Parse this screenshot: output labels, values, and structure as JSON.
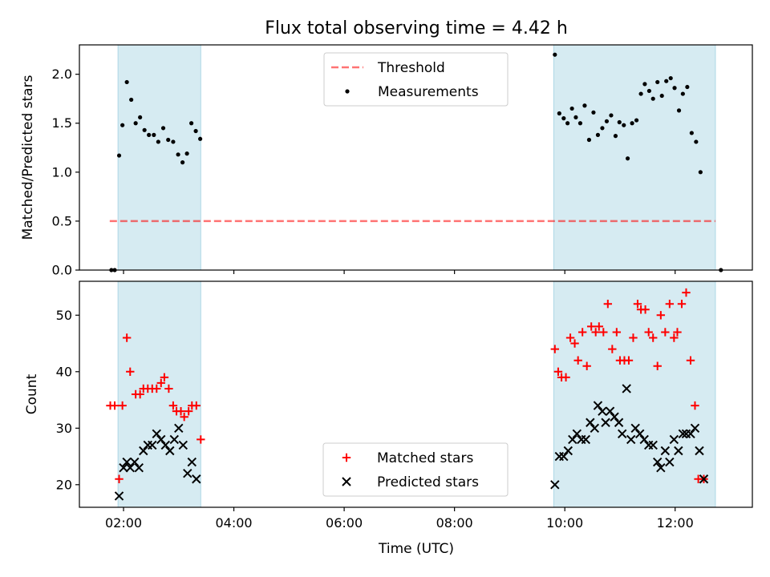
{
  "figure": {
    "title": "Flux total observing time = 4.42 h",
    "xlabel": "Time (UTC)"
  },
  "colors": {
    "band": "#add8e6",
    "threshold": "#ff0000",
    "measurement": "#000000",
    "matched": "#ff0000",
    "predicted": "#000000"
  },
  "chart_data": [
    {
      "type": "scatter",
      "title": "Flux total observing time = 4.42 h",
      "xlabel": "",
      "ylabel": "Matched/Predicted stars",
      "xlim": [
        1.2,
        13.4
      ],
      "ylim": [
        0,
        2.3
      ],
      "xticks": [
        2,
        4,
        6,
        8,
        10,
        12
      ],
      "xtick_labels": [
        "02:00",
        "04:00",
        "06:00",
        "08:00",
        "10:00",
        "12:00"
      ],
      "yticks": [
        0,
        0.5,
        1.0,
        1.5,
        2.0
      ],
      "ytick_labels": [
        "0.0",
        "0.5",
        "1.0",
        "1.5",
        "2.0"
      ],
      "legend_position": "top-center",
      "shaded_intervals": [
        [
          1.9,
          3.4
        ],
        [
          9.8,
          12.73
        ]
      ],
      "threshold": {
        "name": "Threshold",
        "style": "dashed",
        "y": 0.5,
        "x": [
          1.75,
          12.73
        ]
      },
      "series": [
        {
          "name": "Measurements",
          "marker": "dot",
          "points": [
            [
              1.78,
              0
            ],
            [
              1.84,
              0
            ],
            [
              1.92,
              1.17
            ],
            [
              1.98,
              1.48
            ],
            [
              2.06,
              1.92
            ],
            [
              2.14,
              1.74
            ],
            [
              2.22,
              1.5
            ],
            [
              2.3,
              1.56
            ],
            [
              2.38,
              1.43
            ],
            [
              2.46,
              1.38
            ],
            [
              2.55,
              1.38
            ],
            [
              2.63,
              1.31
            ],
            [
              2.72,
              1.45
            ],
            [
              2.81,
              1.33
            ],
            [
              2.9,
              1.31
            ],
            [
              2.99,
              1.18
            ],
            [
              3.07,
              1.1
            ],
            [
              3.15,
              1.19
            ],
            [
              3.23,
              1.5
            ],
            [
              3.31,
              1.42
            ],
            [
              3.39,
              1.34
            ],
            [
              9.82,
              2.2
            ],
            [
              9.9,
              1.6
            ],
            [
              9.98,
              1.55
            ],
            [
              10.05,
              1.5
            ],
            [
              10.13,
              1.65
            ],
            [
              10.2,
              1.56
            ],
            [
              10.28,
              1.5
            ],
            [
              10.36,
              1.68
            ],
            [
              10.44,
              1.33
            ],
            [
              10.52,
              1.61
            ],
            [
              10.6,
              1.38
            ],
            [
              10.68,
              1.45
            ],
            [
              10.76,
              1.52
            ],
            [
              10.84,
              1.58
            ],
            [
              10.92,
              1.37
            ],
            [
              10.99,
              1.51
            ],
            [
              11.07,
              1.48
            ],
            [
              11.14,
              1.14
            ],
            [
              11.22,
              1.5
            ],
            [
              11.3,
              1.53
            ],
            [
              11.38,
              1.8
            ],
            [
              11.45,
              1.9
            ],
            [
              11.53,
              1.83
            ],
            [
              11.6,
              1.75
            ],
            [
              11.68,
              1.92
            ],
            [
              11.76,
              1.78
            ],
            [
              11.84,
              1.93
            ],
            [
              11.92,
              1.96
            ],
            [
              11.99,
              1.86
            ],
            [
              12.07,
              1.63
            ],
            [
              12.14,
              1.8
            ],
            [
              12.22,
              1.87
            ],
            [
              12.3,
              1.4
            ],
            [
              12.38,
              1.31
            ],
            [
              12.46,
              1.0
            ],
            [
              12.83,
              0
            ]
          ]
        }
      ]
    },
    {
      "type": "scatter",
      "title": "",
      "xlabel": "Time (UTC)",
      "ylabel": "Count",
      "xlim": [
        1.2,
        13.4
      ],
      "ylim": [
        16,
        56
      ],
      "xticks": [
        2,
        4,
        6,
        8,
        10,
        12
      ],
      "xtick_labels": [
        "02:00",
        "04:00",
        "06:00",
        "08:00",
        "10:00",
        "12:00"
      ],
      "yticks": [
        20,
        30,
        40,
        50
      ],
      "ytick_labels": [
        "20",
        "30",
        "40",
        "50"
      ],
      "legend_position": "bottom-center",
      "shaded_intervals": [
        [
          1.9,
          3.4
        ],
        [
          9.8,
          12.73
        ]
      ],
      "series": [
        {
          "name": "Matched stars",
          "marker": "plus",
          "points": [
            [
              1.76,
              34
            ],
            [
              1.84,
              34
            ],
            [
              1.92,
              21
            ],
            [
              1.98,
              34
            ],
            [
              2.06,
              46
            ],
            [
              2.12,
              40
            ],
            [
              2.22,
              36
            ],
            [
              2.3,
              36
            ],
            [
              2.36,
              37
            ],
            [
              2.44,
              37
            ],
            [
              2.52,
              37
            ],
            [
              2.6,
              37
            ],
            [
              2.68,
              38
            ],
            [
              2.74,
              39
            ],
            [
              2.82,
              37
            ],
            [
              2.9,
              34
            ],
            [
              2.96,
              33
            ],
            [
              3.04,
              33
            ],
            [
              3.1,
              32
            ],
            [
              3.18,
              33
            ],
            [
              3.24,
              34
            ],
            [
              3.32,
              34
            ],
            [
              3.4,
              28
            ],
            [
              9.82,
              44
            ],
            [
              9.88,
              40
            ],
            [
              9.94,
              39
            ],
            [
              10.02,
              39
            ],
            [
              10.1,
              46
            ],
            [
              10.18,
              45
            ],
            [
              10.24,
              42
            ],
            [
              10.32,
              47
            ],
            [
              10.4,
              41
            ],
            [
              10.48,
              48
            ],
            [
              10.56,
              47
            ],
            [
              10.62,
              48
            ],
            [
              10.7,
              47
            ],
            [
              10.78,
              52
            ],
            [
              10.86,
              44
            ],
            [
              10.94,
              47
            ],
            [
              11.0,
              42
            ],
            [
              11.08,
              42
            ],
            [
              11.16,
              42
            ],
            [
              11.24,
              46
            ],
            [
              11.32,
              52
            ],
            [
              11.38,
              51
            ],
            [
              11.46,
              51
            ],
            [
              11.52,
              47
            ],
            [
              11.6,
              46
            ],
            [
              11.68,
              41
            ],
            [
              11.74,
              50
            ],
            [
              11.82,
              47
            ],
            [
              11.9,
              52
            ],
            [
              11.98,
              46
            ],
            [
              12.04,
              47
            ],
            [
              12.12,
              52
            ],
            [
              12.2,
              54
            ],
            [
              12.28,
              42
            ],
            [
              12.36,
              34
            ],
            [
              12.42,
              21
            ],
            [
              12.52,
              21
            ]
          ]
        },
        {
          "name": "Predicted stars",
          "marker": "x",
          "points": [
            [
              1.92,
              18
            ],
            [
              2.0,
              23
            ],
            [
              2.06,
              24
            ],
            [
              2.12,
              23
            ],
            [
              2.2,
              24
            ],
            [
              2.28,
              23
            ],
            [
              2.36,
              26
            ],
            [
              2.44,
              27
            ],
            [
              2.52,
              27
            ],
            [
              2.6,
              29
            ],
            [
              2.68,
              28
            ],
            [
              2.76,
              27
            ],
            [
              2.84,
              26
            ],
            [
              2.92,
              28
            ],
            [
              3.0,
              30
            ],
            [
              3.08,
              27
            ],
            [
              3.16,
              22
            ],
            [
              3.24,
              24
            ],
            [
              3.32,
              21
            ],
            [
              9.82,
              20
            ],
            [
              9.9,
              25
            ],
            [
              9.98,
              25
            ],
            [
              10.06,
              26
            ],
            [
              10.14,
              28
            ],
            [
              10.22,
              29
            ],
            [
              10.3,
              28
            ],
            [
              10.38,
              28
            ],
            [
              10.46,
              31
            ],
            [
              10.54,
              30
            ],
            [
              10.6,
              34
            ],
            [
              10.68,
              33
            ],
            [
              10.74,
              31
            ],
            [
              10.82,
              33
            ],
            [
              10.9,
              32
            ],
            [
              10.98,
              31
            ],
            [
              11.04,
              29
            ],
            [
              11.12,
              37
            ],
            [
              11.2,
              28
            ],
            [
              11.28,
              30
            ],
            [
              11.36,
              29
            ],
            [
              11.44,
              28
            ],
            [
              11.52,
              27
            ],
            [
              11.6,
              27
            ],
            [
              11.68,
              24
            ],
            [
              11.74,
              23
            ],
            [
              11.82,
              26
            ],
            [
              11.9,
              24
            ],
            [
              11.98,
              28
            ],
            [
              12.06,
              26
            ],
            [
              12.14,
              29
            ],
            [
              12.2,
              29
            ],
            [
              12.28,
              29
            ],
            [
              12.36,
              30
            ],
            [
              12.44,
              26
            ],
            [
              12.52,
              21
            ]
          ]
        }
      ]
    }
  ]
}
